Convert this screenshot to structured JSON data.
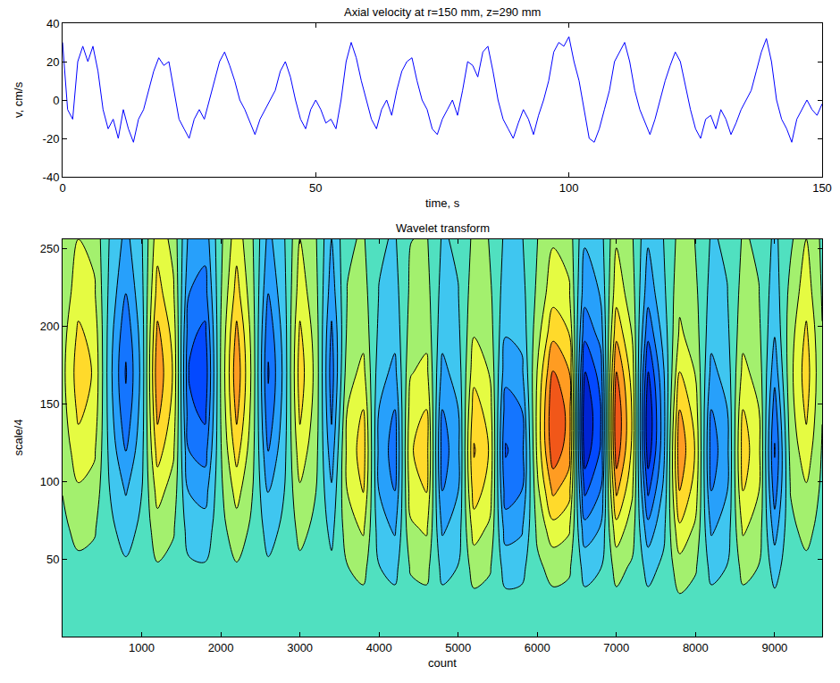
{
  "chart_data": [
    {
      "type": "line",
      "title": "Axial velocity at r=150 mm, z=290 mm",
      "xlabel": "time, s",
      "ylabel": "v, cm/s",
      "color": "#0000ff",
      "x": [
        0,
        1,
        2,
        3,
        4,
        5,
        6,
        7,
        8,
        9,
        10,
        11,
        12,
        13,
        14,
        15,
        16,
        17,
        18,
        19,
        20,
        21,
        22,
        23,
        24,
        25,
        26,
        27,
        28,
        29,
        30,
        31,
        32,
        33,
        34,
        35,
        36,
        37,
        38,
        39,
        40,
        41,
        42,
        43,
        44,
        45,
        46,
        47,
        48,
        49,
        50,
        51,
        52,
        53,
        54,
        55,
        56,
        57,
        58,
        59,
        60,
        61,
        62,
        63,
        64,
        65,
        66,
        67,
        68,
        69,
        70,
        71,
        72,
        73,
        74,
        75,
        76,
        77,
        78,
        79,
        80,
        81,
        82,
        83,
        84,
        85,
        86,
        87,
        88,
        89,
        90,
        91,
        92,
        93,
        94,
        95,
        96,
        97,
        98,
        99,
        100,
        101,
        102,
        103,
        104,
        105,
        106,
        107,
        108,
        109,
        110,
        111,
        112,
        113,
        114,
        115,
        116,
        117,
        118,
        119,
        120,
        121,
        122,
        123,
        124,
        125,
        126,
        127,
        128,
        129,
        130,
        131,
        132,
        133,
        134,
        135,
        136,
        137,
        138,
        139,
        140,
        141,
        142,
        143,
        144,
        145,
        146,
        147,
        148,
        149,
        150
      ],
      "values": [
        30,
        -5,
        -10,
        20,
        28,
        20,
        28,
        15,
        -5,
        -15,
        -10,
        -20,
        -5,
        -15,
        -22,
        -10,
        -5,
        5,
        15,
        22,
        18,
        20,
        5,
        -10,
        -15,
        -20,
        -10,
        -5,
        -10,
        0,
        10,
        20,
        25,
        18,
        10,
        0,
        -5,
        -12,
        -18,
        -10,
        -5,
        0,
        5,
        15,
        20,
        12,
        0,
        -10,
        -15,
        -5,
        0,
        -5,
        -12,
        -10,
        -15,
        0,
        20,
        30,
        22,
        10,
        0,
        -10,
        -15,
        -5,
        0,
        -8,
        5,
        15,
        20,
        22,
        10,
        0,
        -5,
        -15,
        -18,
        -10,
        -5,
        0,
        -8,
        5,
        20,
        18,
        12,
        25,
        28,
        15,
        0,
        -10,
        -15,
        -20,
        -12,
        -5,
        -10,
        -18,
        -8,
        0,
        10,
        25,
        30,
        28,
        33,
        20,
        10,
        -5,
        -20,
        -22,
        -15,
        -5,
        5,
        20,
        25,
        30,
        20,
        5,
        -5,
        -12,
        -18,
        -10,
        0,
        10,
        18,
        25,
        20,
        8,
        -5,
        -15,
        -20,
        -10,
        -8,
        -15,
        -5,
        -10,
        -18,
        -12,
        -5,
        0,
        5,
        15,
        25,
        32,
        20,
        0,
        -10,
        -15,
        -22,
        -10,
        -5,
        0,
        -5,
        -8,
        -2
      ],
      "xlim": [
        0,
        150
      ],
      "xticks": [
        0,
        50,
        100,
        150
      ],
      "ylim": [
        -40,
        40
      ],
      "yticks": [
        -40,
        -20,
        0,
        20,
        40
      ]
    },
    {
      "type": "contour",
      "title": "Wavelet transform",
      "xlabel": "count",
      "ylabel": "scale/4",
      "x": [
        0,
        200,
        400,
        600,
        800,
        1000,
        1200,
        1400,
        1600,
        1800,
        2000,
        2200,
        2400,
        2600,
        2800,
        3000,
        3200,
        3400,
        3600,
        3800,
        4000,
        4200,
        4400,
        4600,
        4800,
        5000,
        5200,
        5400,
        5600,
        5800,
        6000,
        6200,
        6400,
        6600,
        6800,
        7000,
        7200,
        7400,
        7600,
        7800,
        8000,
        8200,
        8400,
        8600,
        8800,
        9000,
        9200,
        9400,
        9600
      ],
      "y": [
        0,
        20,
        45,
        70,
        95,
        120,
        145,
        170,
        195,
        220,
        256
      ],
      "z": [
        [
          0,
          0,
          0,
          0,
          0,
          0,
          0,
          0,
          0,
          0,
          0,
          0,
          0,
          0,
          0,
          0,
          0,
          0,
          0,
          0,
          0,
          0,
          0,
          0,
          0,
          0,
          0,
          0,
          0,
          0,
          0,
          0,
          0,
          0,
          0,
          0,
          0,
          0,
          0,
          0,
          0,
          0,
          0,
          0,
          0,
          0,
          0,
          0,
          0
        ],
        [
          0.0,
          0.01,
          0.01,
          0.0,
          -0.01,
          0.0,
          0.01,
          0.01,
          -0.01,
          -0.01,
          0.0,
          0.01,
          0.0,
          -0.01,
          0.0,
          0.01,
          0.0,
          -0.01,
          0.02,
          0.03,
          -0.02,
          -0.03,
          0.02,
          0.03,
          -0.03,
          -0.02,
          0.03,
          0.02,
          -0.03,
          -0.03,
          0.01,
          0.03,
          0.02,
          -0.03,
          -0.02,
          0.03,
          0.01,
          -0.03,
          -0.01,
          0.04,
          0.02,
          -0.03,
          -0.02,
          0.03,
          0.02,
          -0.03,
          0.0,
          0.01,
          0.0
        ],
        [
          0.02,
          0.05,
          0.04,
          -0.02,
          -0.06,
          -0.02,
          0.07,
          0.04,
          -0.06,
          -0.07,
          0.01,
          0.07,
          0.02,
          -0.06,
          -0.02,
          0.05,
          0.02,
          -0.05,
          0.08,
          0.13,
          -0.08,
          -0.13,
          0.1,
          0.13,
          -0.13,
          -0.08,
          0.15,
          0.1,
          -0.15,
          -0.13,
          0.05,
          0.14,
          0.11,
          -0.14,
          -0.09,
          0.14,
          0.06,
          -0.14,
          -0.05,
          0.18,
          0.1,
          -0.13,
          -0.08,
          0.13,
          0.08,
          -0.15,
          0.02,
          0.05,
          0.01
        ],
        [
          0.05,
          0.13,
          0.1,
          -0.05,
          -0.15,
          -0.05,
          0.18,
          0.1,
          -0.15,
          -0.18,
          0.03,
          0.18,
          0.05,
          -0.15,
          -0.05,
          0.13,
          0.05,
          -0.13,
          0.17,
          0.28,
          -0.17,
          -0.28,
          0.22,
          0.28,
          -0.28,
          -0.17,
          0.33,
          0.22,
          -0.33,
          -0.28,
          0.12,
          0.36,
          0.28,
          -0.36,
          -0.24,
          0.36,
          0.16,
          -0.36,
          -0.12,
          0.39,
          0.22,
          -0.28,
          -0.17,
          0.28,
          0.17,
          -0.33,
          0.05,
          0.13,
          0.03
        ],
        [
          0.09,
          0.23,
          0.18,
          -0.09,
          -0.27,
          -0.09,
          0.32,
          0.18,
          -0.27,
          -0.32,
          0.05,
          0.32,
          0.09,
          -0.27,
          -0.09,
          0.23,
          0.09,
          -0.23,
          0.26,
          0.43,
          -0.26,
          -0.43,
          0.34,
          0.43,
          -0.43,
          -0.26,
          0.51,
          0.34,
          -0.51,
          -0.43,
          0.21,
          0.63,
          0.49,
          -0.63,
          -0.42,
          0.63,
          0.28,
          -0.63,
          -0.21,
          0.6,
          0.34,
          -0.43,
          -0.26,
          0.43,
          0.26,
          -0.51,
          0.09,
          0.23,
          0.05
        ],
        [
          0.14,
          0.35,
          0.28,
          -0.14,
          -0.42,
          -0.14,
          0.49,
          0.28,
          -0.42,
          -0.49,
          0.07,
          0.49,
          0.14,
          -0.42,
          -0.14,
          0.35,
          0.14,
          -0.35,
          0.3,
          0.5,
          -0.3,
          -0.5,
          0.4,
          0.5,
          -0.5,
          -0.3,
          0.6,
          0.4,
          -0.6,
          -0.5,
          0.29,
          0.86,
          0.67,
          -0.86,
          -0.57,
          0.86,
          0.38,
          -0.86,
          -0.29,
          0.7,
          0.4,
          -0.5,
          -0.3,
          0.5,
          0.3,
          -0.6,
          0.14,
          0.35,
          0.07
        ],
        [
          0.18,
          0.45,
          0.36,
          -0.18,
          -0.54,
          -0.18,
          0.63,
          0.36,
          -0.54,
          -0.63,
          0.09,
          0.63,
          0.18,
          -0.54,
          -0.18,
          0.45,
          0.18,
          -0.45,
          0.26,
          0.43,
          -0.26,
          -0.43,
          0.34,
          0.43,
          -0.43,
          -0.26,
          0.51,
          0.34,
          -0.51,
          -0.43,
          0.3,
          0.9,
          0.7,
          -0.9,
          -0.6,
          0.9,
          0.4,
          -0.9,
          -0.3,
          0.6,
          0.34,
          -0.43,
          -0.26,
          0.43,
          0.26,
          -0.51,
          0.18,
          0.45,
          0.09
        ],
        [
          0.2,
          0.5,
          0.4,
          -0.2,
          -0.6,
          -0.2,
          0.7,
          0.4,
          -0.6,
          -0.7,
          0.1,
          0.7,
          0.2,
          -0.6,
          -0.2,
          0.5,
          0.2,
          -0.5,
          0.18,
          0.3,
          -0.18,
          -0.3,
          0.24,
          0.3,
          -0.3,
          -0.18,
          0.36,
          0.24,
          -0.36,
          -0.3,
          0.26,
          0.77,
          0.6,
          -0.77,
          -0.51,
          0.77,
          0.34,
          -0.77,
          -0.26,
          0.42,
          0.24,
          -0.3,
          -0.18,
          0.3,
          0.18,
          -0.36,
          0.2,
          0.5,
          0.1
        ],
        [
          0.18,
          0.45,
          0.36,
          -0.18,
          -0.54,
          -0.18,
          0.63,
          0.36,
          -0.54,
          -0.63,
          0.09,
          0.63,
          0.18,
          -0.54,
          -0.18,
          0.45,
          0.18,
          -0.45,
          0.12,
          0.2,
          -0.12,
          -0.2,
          0.16,
          0.2,
          -0.2,
          -0.12,
          0.24,
          0.16,
          -0.24,
          -0.2,
          0.18,
          0.54,
          0.42,
          -0.54,
          -0.36,
          0.54,
          0.24,
          -0.54,
          -0.18,
          0.28,
          0.16,
          -0.2,
          -0.12,
          0.2,
          0.12,
          -0.24,
          0.18,
          0.45,
          0.09
        ],
        [
          0.14,
          0.35,
          0.28,
          -0.14,
          -0.42,
          -0.14,
          0.49,
          0.28,
          -0.42,
          -0.49,
          0.07,
          0.49,
          0.14,
          -0.42,
          -0.14,
          0.35,
          0.14,
          -0.35,
          0.09,
          0.15,
          -0.09,
          -0.15,
          0.12,
          0.15,
          -0.15,
          -0.09,
          0.18,
          0.12,
          -0.18,
          -0.15,
          0.12,
          0.36,
          0.28,
          -0.36,
          -0.24,
          0.36,
          0.16,
          -0.36,
          -0.12,
          0.21,
          0.12,
          -0.15,
          -0.09,
          0.15,
          0.09,
          -0.18,
          0.14,
          0.35,
          0.07
        ],
        [
          0.1,
          0.25,
          0.2,
          -0.1,
          -0.3,
          -0.1,
          0.35,
          0.2,
          -0.3,
          -0.35,
          0.05,
          0.35,
          0.1,
          -0.3,
          -0.1,
          0.25,
          0.1,
          -0.25,
          0.06,
          0.1,
          -0.06,
          -0.1,
          0.08,
          0.1,
          -0.1,
          -0.06,
          0.12,
          0.08,
          -0.12,
          -0.1,
          0.08,
          0.23,
          0.18,
          -0.23,
          -0.15,
          0.23,
          0.1,
          -0.23,
          -0.08,
          0.14,
          0.08,
          -0.1,
          -0.06,
          0.1,
          0.06,
          -0.12,
          0.05,
          0.25,
          0.05
        ]
      ],
      "zlim": [
        -1,
        1
      ],
      "xlim": [
        0,
        9600
      ],
      "xticks": [
        1000,
        2000,
        3000,
        4000,
        5000,
        6000,
        7000,
        8000,
        9000
      ],
      "ylim": [
        0,
        256
      ],
      "yticks": [
        50,
        100,
        150,
        200,
        250
      ]
    }
  ]
}
